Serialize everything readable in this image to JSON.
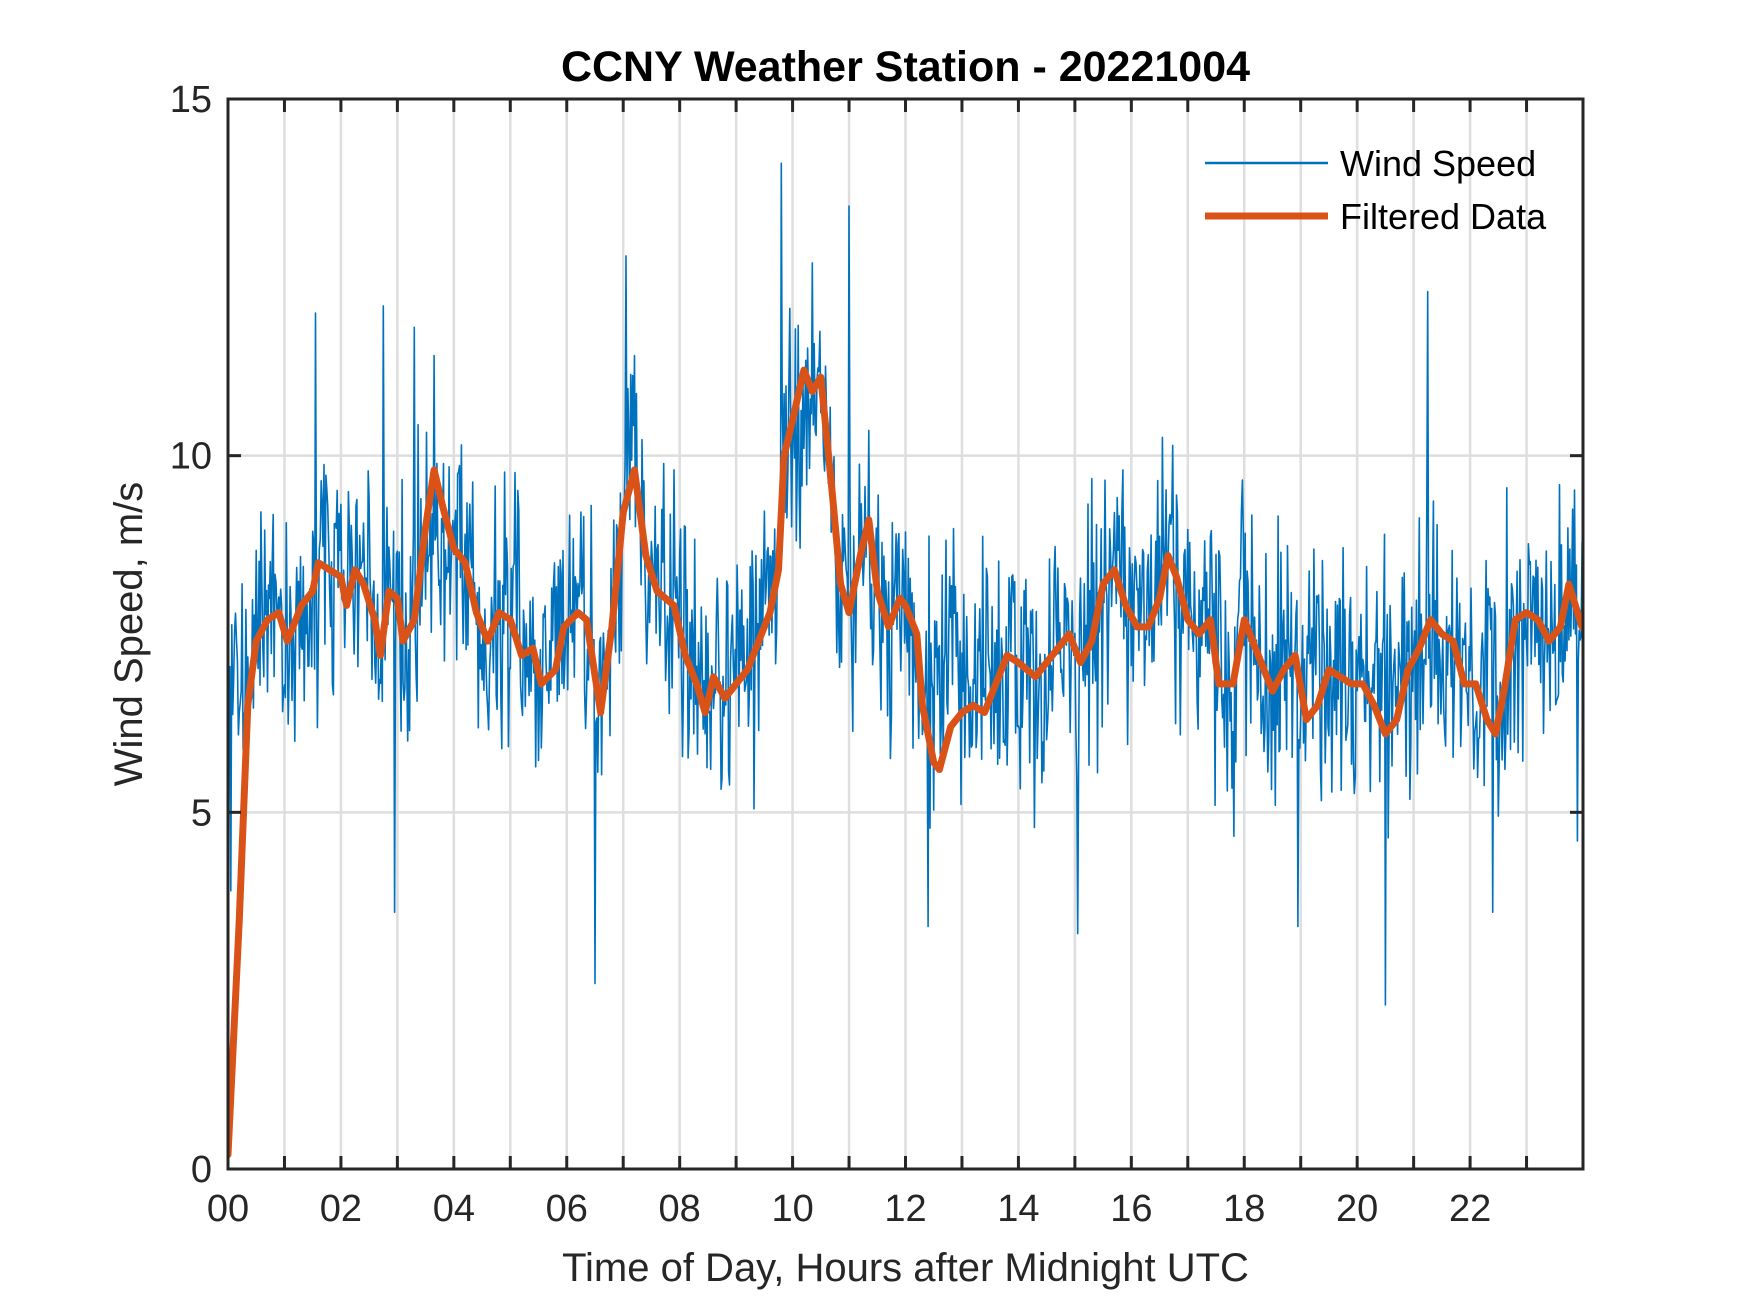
{
  "chart_data": {
    "type": "line",
    "title": "CCNY Weather Station - 20221004",
    "xlabel": "Time of Day, Hours after Midnight UTC",
    "ylabel": "Wind Speed, m/s",
    "xlim": [
      0,
      24
    ],
    "ylim": [
      0,
      15
    ],
    "grid": true,
    "x_ticks": [
      0,
      2,
      4,
      6,
      8,
      10,
      12,
      14,
      16,
      18,
      20,
      22
    ],
    "x_tick_labels": [
      "00",
      "02",
      "04",
      "06",
      "08",
      "10",
      "12",
      "14",
      "16",
      "18",
      "20",
      "22"
    ],
    "x_minor_gridlines": [
      1,
      3,
      5,
      7,
      9,
      11,
      13,
      15,
      17,
      19,
      21,
      23
    ],
    "y_ticks": [
      0,
      5,
      10,
      15
    ],
    "y_tick_labels": [
      "0",
      "5",
      "10",
      "15"
    ],
    "legend": {
      "placement": "top-right",
      "entries": [
        "Wind Speed",
        "Filtered Data"
      ]
    },
    "series": [
      {
        "name": "Wind Speed",
        "color": "#0072BD",
        "style": "thin-line",
        "description": "high-frequency raw samples fluctuating around the filtered curve",
        "samples_per_hour": 60,
        "noise_amplitude_ms": 1.6,
        "notable_extremes": [
          {
            "x": 0.05,
            "y": 3.9
          },
          {
            "x": 1.55,
            "y": 12.0
          },
          {
            "x": 2.75,
            "y": 12.1
          },
          {
            "x": 2.95,
            "y": 3.6
          },
          {
            "x": 3.3,
            "y": 11.8
          },
          {
            "x": 6.5,
            "y": 2.6
          },
          {
            "x": 7.05,
            "y": 12.8
          },
          {
            "x": 9.8,
            "y": 14.1
          },
          {
            "x": 11.0,
            "y": 13.5
          },
          {
            "x": 12.4,
            "y": 3.4
          },
          {
            "x": 15.05,
            "y": 3.3
          },
          {
            "x": 18.95,
            "y": 3.4
          },
          {
            "x": 20.5,
            "y": 2.3
          },
          {
            "x": 21.25,
            "y": 12.3
          },
          {
            "x": 22.4,
            "y": 3.6
          },
          {
            "x": 23.9,
            "y": 4.6
          }
        ]
      },
      {
        "name": "Filtered Data",
        "color": "#D95319",
        "style": "thick-line",
        "x": [
          0.0,
          0.2,
          0.35,
          0.5,
          0.7,
          0.9,
          1.05,
          1.3,
          1.5,
          1.6,
          1.8,
          2.0,
          2.1,
          2.25,
          2.4,
          2.6,
          2.7,
          2.85,
          3.0,
          3.1,
          3.3,
          3.5,
          3.65,
          3.8,
          4.0,
          4.2,
          4.4,
          4.6,
          4.8,
          5.0,
          5.2,
          5.4,
          5.55,
          5.8,
          5.95,
          6.2,
          6.35,
          6.6,
          6.8,
          7.0,
          7.2,
          7.4,
          7.6,
          7.9,
          8.1,
          8.3,
          8.45,
          8.6,
          8.8,
          9.0,
          9.2,
          9.4,
          9.6,
          9.75,
          9.85,
          10.0,
          10.2,
          10.35,
          10.5,
          10.7,
          10.85,
          11.0,
          11.2,
          11.35,
          11.5,
          11.7,
          11.9,
          12.0,
          12.2,
          12.3,
          12.5,
          12.6,
          12.8,
          13.0,
          13.2,
          13.4,
          13.6,
          13.8,
          14.0,
          14.3,
          14.5,
          14.7,
          14.9,
          15.1,
          15.3,
          15.5,
          15.7,
          15.9,
          16.1,
          16.3,
          16.5,
          16.65,
          16.8,
          17.0,
          17.2,
          17.4,
          17.55,
          17.8,
          18.0,
          18.2,
          18.5,
          18.7,
          18.9,
          19.1,
          19.3,
          19.5,
          19.7,
          19.9,
          20.1,
          20.3,
          20.5,
          20.7,
          20.9,
          21.1,
          21.3,
          21.5,
          21.7,
          21.9,
          22.1,
          22.3,
          22.45,
          22.6,
          22.8,
          23.0,
          23.2,
          23.4,
          23.6,
          23.75,
          23.98
        ],
        "y": [
          0.2,
          3.5,
          6.5,
          7.4,
          7.7,
          7.8,
          7.4,
          7.9,
          8.1,
          8.5,
          8.4,
          8.3,
          7.9,
          8.4,
          8.2,
          7.7,
          7.2,
          8.1,
          8.0,
          7.4,
          7.7,
          9.0,
          9.8,
          9.3,
          8.7,
          8.5,
          7.8,
          7.4,
          7.8,
          7.7,
          7.2,
          7.3,
          6.8,
          7.0,
          7.6,
          7.8,
          7.7,
          6.4,
          7.6,
          9.2,
          9.8,
          8.6,
          8.1,
          7.9,
          7.2,
          6.8,
          6.4,
          6.9,
          6.6,
          6.8,
          7.0,
          7.4,
          7.8,
          8.4,
          10.0,
          10.5,
          11.2,
          10.9,
          11.1,
          9.5,
          8.2,
          7.8,
          8.6,
          9.1,
          8.1,
          7.6,
          8.0,
          7.9,
          7.5,
          6.5,
          5.7,
          5.6,
          6.2,
          6.4,
          6.5,
          6.4,
          6.8,
          7.2,
          7.1,
          6.9,
          7.1,
          7.3,
          7.5,
          7.1,
          7.4,
          8.2,
          8.4,
          7.9,
          7.6,
          7.6,
          8.0,
          8.6,
          8.3,
          7.7,
          7.5,
          7.7,
          6.8,
          6.8,
          7.7,
          7.3,
          6.7,
          7.0,
          7.2,
          6.3,
          6.5,
          7.0,
          6.9,
          6.8,
          6.8,
          6.5,
          6.1,
          6.3,
          7.0,
          7.3,
          7.7,
          7.5,
          7.4,
          6.8,
          6.8,
          6.3,
          6.1,
          6.7,
          7.7,
          7.8,
          7.7,
          7.4,
          7.6,
          8.2,
          7.6
        ]
      }
    ]
  }
}
